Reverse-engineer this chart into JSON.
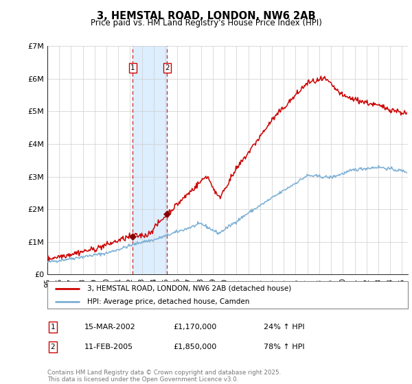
{
  "title": "3, HEMSTAL ROAD, LONDON, NW6 2AB",
  "subtitle": "Price paid vs. HM Land Registry's House Price Index (HPI)",
  "ylim": [
    0,
    7000000
  ],
  "yticks": [
    0,
    1000000,
    2000000,
    3000000,
    4000000,
    5000000,
    6000000,
    7000000
  ],
  "ytick_labels": [
    "£0",
    "£1M",
    "£2M",
    "£3M",
    "£4M",
    "£5M",
    "£6M",
    "£7M"
  ],
  "xlim_start": 1995.0,
  "xlim_end": 2025.5,
  "sale1_x": 2002.21,
  "sale1_y": 1170000,
  "sale1_label": "1",
  "sale1_date": "15-MAR-2002",
  "sale1_price": "£1,170,000",
  "sale1_hpi": "24% ↑ HPI",
  "sale2_x": 2005.12,
  "sale2_y": 1850000,
  "sale2_label": "2",
  "sale2_date": "11-FEB-2005",
  "sale2_price": "£1,850,000",
  "sale2_hpi": "78% ↑ HPI",
  "property_color": "#cc0000",
  "hpi_color": "#7bafd4",
  "shade_color": "#ddeeff",
  "legend1": "3, HEMSTAL ROAD, LONDON, NW6 2AB (detached house)",
  "legend2": "HPI: Average price, detached house, Camden",
  "footer": "Contains HM Land Registry data © Crown copyright and database right 2025.\nThis data is licensed under the Open Government Licence v3.0.",
  "background_color": "#ffffff",
  "grid_color": "#cccccc"
}
